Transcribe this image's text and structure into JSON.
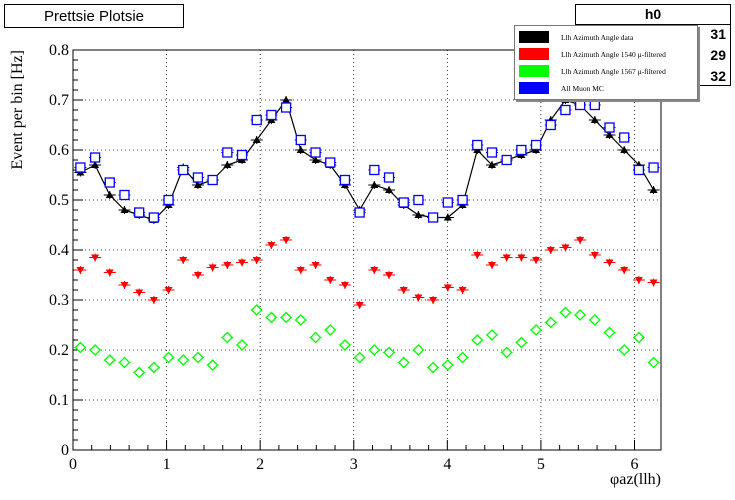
{
  "title_box": "Prettsie Plotsie",
  "stats": {
    "name": "h0",
    "values": [
      "31",
      "29",
      "32"
    ]
  },
  "legend": [
    {
      "label": "Llh Azimuth Angle data",
      "color": "#000000"
    },
    {
      "label": "Llh Azimuth Angle 1540 μ-filtered",
      "color": "#ff0000"
    },
    {
      "label": "Llh Azimuth Angle 1567 μ-filtered",
      "color": "#00ff00"
    },
    {
      "label": "All Muon MC",
      "color": "#0000ff"
    }
  ],
  "chart_data": {
    "type": "scatter",
    "title": "",
    "xlabel": "φaz(llh)",
    "ylabel": "Event per bin [Hz]",
    "xlim": [
      0,
      6.2832
    ],
    "ylim": [
      0,
      0.8
    ],
    "xticks": [
      "0",
      "1",
      "2",
      "3",
      "4",
      "5",
      "6"
    ],
    "yticks": [
      "0",
      "0.1",
      "0.2",
      "0.3",
      "0.4",
      "0.5",
      "0.6",
      "0.7",
      "0.8"
    ],
    "grid": true,
    "x": [
      0.079,
      0.236,
      0.393,
      0.55,
      0.707,
      0.864,
      1.021,
      1.178,
      1.335,
      1.492,
      1.649,
      1.806,
      1.963,
      2.12,
      2.277,
      2.434,
      2.592,
      2.749,
      2.906,
      3.063,
      3.22,
      3.377,
      3.534,
      3.691,
      3.848,
      4.005,
      4.163,
      4.32,
      4.477,
      4.634,
      4.791,
      4.948,
      5.105,
      5.262,
      5.419,
      5.576,
      5.733,
      5.89,
      6.047,
      6.204
    ],
    "series": [
      {
        "name": "Llh Azimuth Angle data",
        "color": "#000000",
        "marker": "triangle-up",
        "line": true,
        "values": [
          0.555,
          0.57,
          0.51,
          0.48,
          0.47,
          0.46,
          0.49,
          0.565,
          0.53,
          0.54,
          0.57,
          0.58,
          0.62,
          0.66,
          0.7,
          0.6,
          0.58,
          0.57,
          0.53,
          0.48,
          0.53,
          0.52,
          0.49,
          0.47,
          0.465,
          0.465,
          0.49,
          0.6,
          0.57,
          0.58,
          0.59,
          0.6,
          0.66,
          0.7,
          0.69,
          0.66,
          0.63,
          0.6,
          0.57,
          0.52
        ]
      },
      {
        "name": "Llh Azimuth Angle 1540 μ-filtered",
        "color": "#ff0000",
        "marker": "triangle-down",
        "line": false,
        "values": [
          0.36,
          0.385,
          0.355,
          0.33,
          0.315,
          0.3,
          0.32,
          0.38,
          0.35,
          0.365,
          0.37,
          0.375,
          0.38,
          0.41,
          0.42,
          0.36,
          0.37,
          0.34,
          0.33,
          0.29,
          0.36,
          0.35,
          0.32,
          0.305,
          0.3,
          0.325,
          0.32,
          0.39,
          0.37,
          0.385,
          0.385,
          0.38,
          0.4,
          0.405,
          0.42,
          0.39,
          0.375,
          0.36,
          0.34,
          0.335
        ]
      },
      {
        "name": "Llh Azimuth Angle 1567 μ-filtered",
        "color": "#00ff00",
        "marker": "diamond-open",
        "line": false,
        "values": [
          0.205,
          0.2,
          0.18,
          0.175,
          0.155,
          0.165,
          0.185,
          0.18,
          0.185,
          0.17,
          0.225,
          0.21,
          0.28,
          0.265,
          0.265,
          0.26,
          0.225,
          0.24,
          0.21,
          0.185,
          0.2,
          0.195,
          0.175,
          0.2,
          0.165,
          0.17,
          0.185,
          0.22,
          0.23,
          0.195,
          0.215,
          0.24,
          0.255,
          0.275,
          0.27,
          0.26,
          0.235,
          0.2,
          0.225,
          0.175
        ]
      },
      {
        "name": "All Muon MC",
        "color": "#0000ff",
        "marker": "square-open",
        "line": false,
        "values": [
          0.565,
          0.585,
          0.535,
          0.51,
          0.475,
          0.465,
          0.5,
          0.56,
          0.545,
          0.54,
          0.595,
          0.59,
          0.66,
          0.67,
          0.685,
          0.62,
          0.595,
          0.575,
          0.54,
          0.475,
          0.56,
          0.545,
          0.495,
          0.5,
          0.465,
          0.495,
          0.5,
          0.61,
          0.595,
          0.58,
          0.6,
          0.61,
          0.65,
          0.68,
          0.69,
          0.69,
          0.645,
          0.625,
          0.56,
          0.565
        ]
      }
    ]
  }
}
